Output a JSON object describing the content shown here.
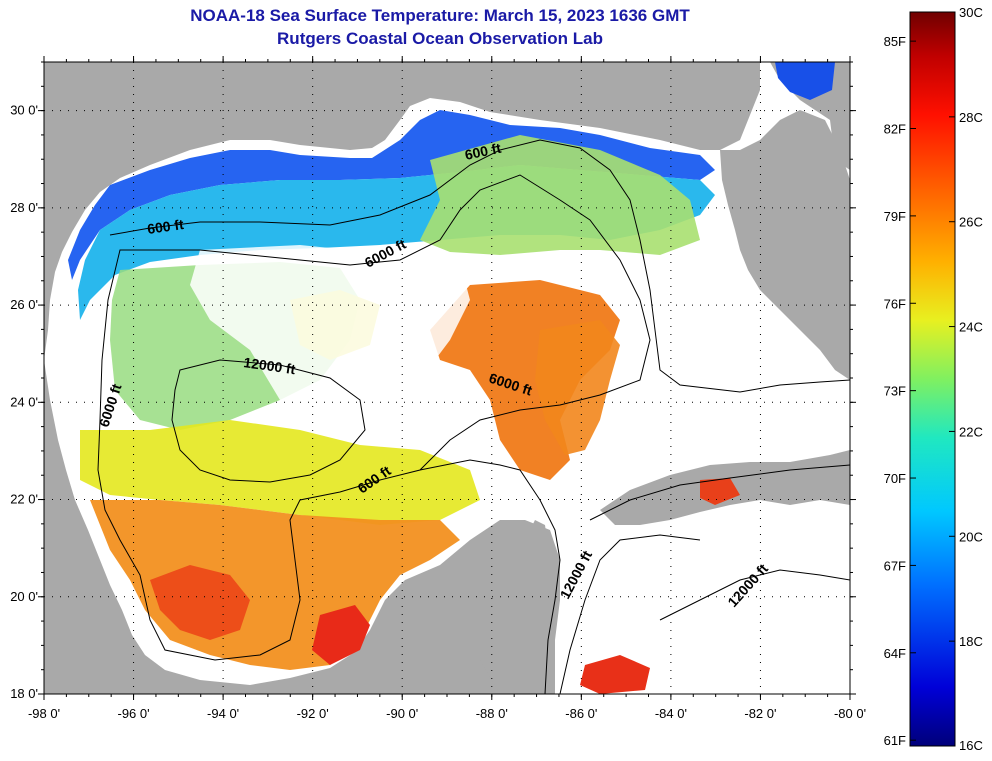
{
  "header": {
    "title": "NOAA-18 Sea Surface Temperature:  March 15, 2023 1636 GMT",
    "subtitle": "Rutgers Coastal Ocean Observation Lab"
  },
  "axes": {
    "longitude_ticks": [
      "-98 0'",
      "-96 0'",
      "-94 0'",
      "-92 0'",
      "-90 0'",
      "-88 0'",
      "-86 0'",
      "-84 0'",
      "-82 0'",
      "-80 0'"
    ],
    "latitude_ticks": [
      "30 0'",
      "28 0'",
      "26 0'",
      "24 0'",
      "22 0'",
      "20 0'",
      "18 0'"
    ],
    "lon_range": [
      -98,
      -80
    ],
    "lat_range": [
      18,
      31
    ],
    "grid": "dotted"
  },
  "contour_labels": [
    "600 ft",
    "600 ft",
    "6000 ft",
    "12000 ft",
    "6000 ft",
    "6000 ft",
    "600 ft",
    "12000 ft",
    "12000 ft"
  ],
  "colorbar": {
    "fahrenheit_labels": [
      "85F",
      "82F",
      "79F",
      "76F",
      "73F",
      "70F",
      "67F",
      "64F",
      "61F"
    ],
    "celsius_labels": [
      "30C",
      "28C",
      "26C",
      "24C",
      "22C",
      "20C",
      "18C",
      "16C"
    ],
    "range_c": [
      16,
      30
    ]
  },
  "colors": {
    "land": "#a9a9a9",
    "cloud": "#ffffff",
    "title": "#1a1aa6",
    "cold": "#0a1fd8",
    "cool": "#16b8e8",
    "mild": "#9fe07a",
    "warm_yellow": "#e8e620",
    "warm_orange": "#f08a18",
    "hot_red": "#e83018"
  }
}
